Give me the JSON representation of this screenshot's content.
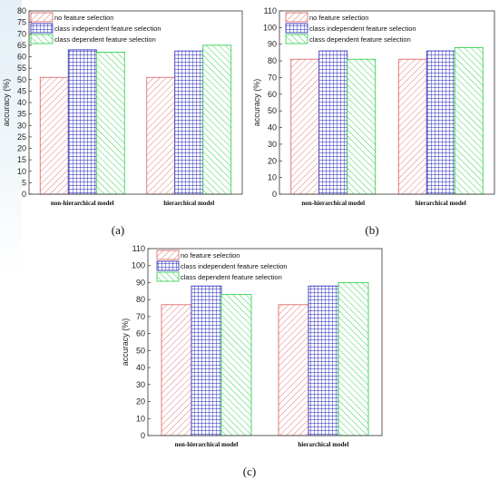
{
  "legend": {
    "s1": "no feature selection",
    "s2": "class independent feature selection",
    "s3": "class dependent feature selection"
  },
  "colors": {
    "s1": "#e05a5a",
    "s2": "#1d1db8",
    "s3": "#22cc44"
  },
  "chart_data": [
    {
      "type": "bar",
      "panel": "(a)",
      "categories": [
        "non-hierarchical model",
        "hierarchical model"
      ],
      "ylabel": "accuracy (%)",
      "ylim": [
        0,
        80
      ],
      "yticks": [
        0,
        5,
        10,
        15,
        20,
        25,
        30,
        35,
        40,
        45,
        50,
        55,
        60,
        65,
        70,
        75,
        80
      ],
      "series": [
        {
          "name": "no feature selection",
          "values": [
            51,
            51
          ]
        },
        {
          "name": "class independent feature selection",
          "values": [
            63,
            62.5
          ]
        },
        {
          "name": "class dependent feature selection",
          "values": [
            62,
            65
          ]
        }
      ]
    },
    {
      "type": "bar",
      "panel": "(b)",
      "categories": [
        "non-hierarchical model",
        "hierarchical model"
      ],
      "ylabel": "accuracy (%)",
      "ylim": [
        0,
        110
      ],
      "yticks": [
        0,
        10,
        20,
        30,
        40,
        50,
        60,
        70,
        80,
        90,
        100,
        110
      ],
      "series": [
        {
          "name": "no feature selection",
          "values": [
            81,
            81
          ]
        },
        {
          "name": "class independent feature selection",
          "values": [
            86,
            86
          ]
        },
        {
          "name": "class dependent feature selection",
          "values": [
            81,
            88
          ]
        }
      ]
    },
    {
      "type": "bar",
      "panel": "(c)",
      "categories": [
        "non-hierarchical model",
        "hierarchical model"
      ],
      "ylabel": "accuracy (%)",
      "ylim": [
        0,
        110
      ],
      "yticks": [
        0,
        10,
        20,
        30,
        40,
        50,
        60,
        70,
        80,
        90,
        100,
        110
      ],
      "series": [
        {
          "name": "no feature selection",
          "values": [
            77,
            77
          ]
        },
        {
          "name": "class independent feature selection",
          "values": [
            88,
            88
          ]
        },
        {
          "name": "class dependent feature selection",
          "values": [
            83,
            90
          ]
        }
      ]
    }
  ]
}
